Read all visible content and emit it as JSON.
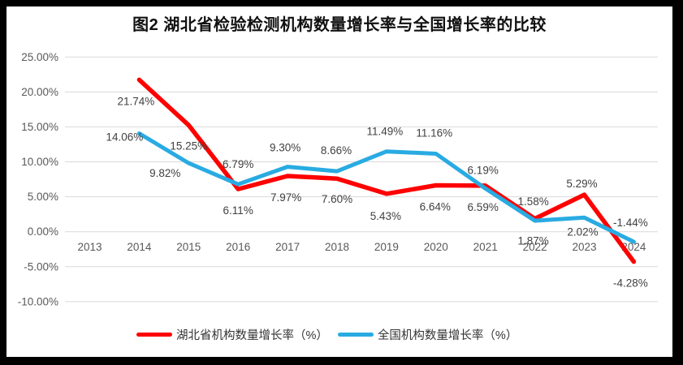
{
  "title": "图2  湖北省检验检测机构数量增长率与全国增长率的比较",
  "colors": {
    "frame": "#000000",
    "paper": "#ffffff",
    "grid": "#d9d9d9",
    "axis_text": "#595959",
    "label_text": "#404040",
    "title_text": "#111111",
    "legend_text": "#333333"
  },
  "chart_data": {
    "type": "line",
    "title": "图2  湖北省检验检测机构数量增长率与全国增长率的比较",
    "xlabel": "",
    "ylabel": "",
    "ylim": [
      -10,
      25
    ],
    "grid": true,
    "legend_position": "bottom",
    "x_labels": [
      "2013",
      "2014",
      "2015",
      "2016",
      "2017",
      "2018",
      "2019",
      "2020",
      "2021",
      "2022",
      "2023",
      "2024"
    ],
    "y_ticks": [
      {
        "value": 25,
        "label": "25.00%"
      },
      {
        "value": 20,
        "label": "20.00%"
      },
      {
        "value": 15,
        "label": "15.00%"
      },
      {
        "value": 10,
        "label": "10.00%"
      },
      {
        "value": 5,
        "label": "5.00%"
      },
      {
        "value": 0,
        "label": "0.00%"
      },
      {
        "value": -5,
        "label": "-5.00%"
      },
      {
        "value": -10,
        "label": "-10.00%"
      }
    ],
    "series": [
      {
        "id": "hubei",
        "name": "湖北省机构数量增长率（%）",
        "color": "#FE0000",
        "values": [
          null,
          21.74,
          15.25,
          6.11,
          7.97,
          7.6,
          5.43,
          6.64,
          6.59,
          1.87,
          5.29,
          -4.28
        ],
        "point_labels": [
          null,
          "21.74%",
          "15.25%",
          "6.11%",
          "7.97%",
          "7.60%",
          "5.43%",
          "6.64%",
          "6.59%",
          "1.87%",
          "5.29%",
          "-4.28%"
        ]
      },
      {
        "id": "national",
        "name": "全国机构数量增长率（%）",
        "color": "#29ABE2",
        "values": [
          null,
          14.06,
          9.82,
          6.79,
          9.3,
          8.66,
          11.49,
          11.16,
          6.19,
          1.58,
          2.02,
          -1.44
        ],
        "point_labels": [
          null,
          "14.06%",
          "9.82%",
          "6.79%",
          "9.30%",
          "8.66%",
          "11.49%",
          "11.16%",
          "6.19%",
          "1.58%",
          "2.02%",
          "-1.44%"
        ]
      }
    ]
  }
}
